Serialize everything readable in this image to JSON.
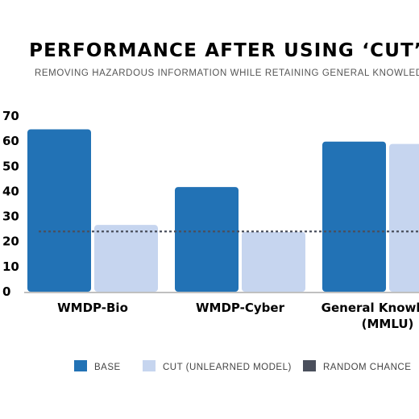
{
  "chart_data": {
    "type": "bar",
    "title": "PERFORMANCE AFTER USING ‘CUT’",
    "subtitle": "REMOVING HAZARDOUS INFORMATION WHILE RETAINING GENERAL KNOWLEDGE",
    "categories": [
      "WMDP-Bio",
      "WMDP-Cyber",
      "General Knowledge (MMLU)"
    ],
    "category_lines": [
      [
        "WMDP-Bio"
      ],
      [
        "WMDP-Cyber"
      ],
      [
        "General Knowledge",
        "(MMLU)"
      ]
    ],
    "series": [
      {
        "name": "BASE",
        "values": [
          64.7,
          41.7,
          59.8
        ],
        "color": "#2272b5"
      },
      {
        "name": "CUT (UNLEARNED MODEL)",
        "values": [
          26.6,
          23.8,
          58.9
        ],
        "color": "#c6d5ef"
      }
    ],
    "reference_line": {
      "name": "RANDOM CHANCE",
      "value": 24.0,
      "color": "#4a4f5c",
      "style": "dotted"
    },
    "ylim": [
      0,
      70
    ],
    "yticks": [
      0,
      10,
      20,
      30,
      40,
      50,
      60,
      70
    ],
    "xlabel": "",
    "ylabel": "",
    "grid": false,
    "legend_position": "bottom"
  }
}
